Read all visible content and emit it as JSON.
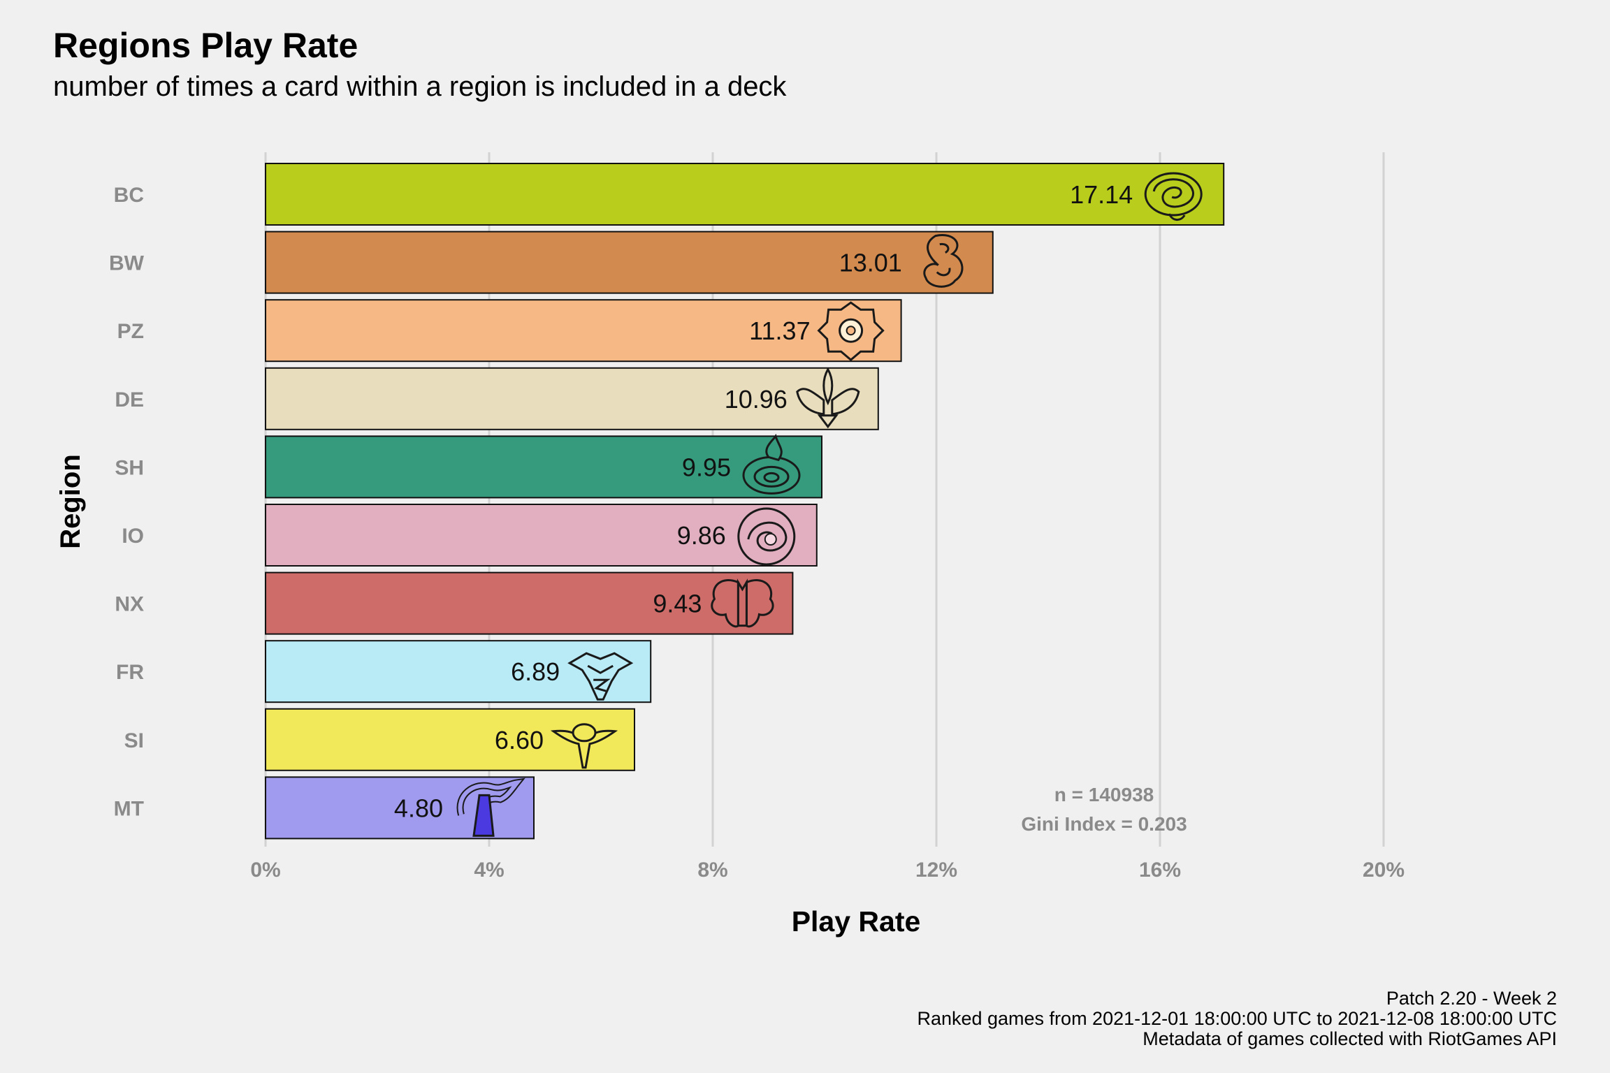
{
  "chart_data": {
    "type": "bar",
    "orientation": "horizontal",
    "title": "Regions Play Rate",
    "subtitle": "number of times a card within a region is included in a deck",
    "xlabel": "Play Rate",
    "ylabel": "Region",
    "xlim": [
      0,
      20
    ],
    "x_ticks": [
      "0%",
      "4%",
      "8%",
      "12%",
      "16%",
      "20%"
    ],
    "x_tick_values": [
      0,
      4,
      8,
      12,
      16,
      20
    ],
    "grid": "vertical-major",
    "categories": [
      "BC",
      "BW",
      "PZ",
      "DE",
      "SH",
      "IO",
      "NX",
      "FR",
      "SI",
      "MT"
    ],
    "values": [
      17.14,
      13.01,
      11.37,
      10.96,
      9.95,
      9.86,
      9.43,
      6.89,
      6.6,
      4.8
    ],
    "value_labels": [
      "17.14",
      "13.01",
      "11.37",
      "10.96",
      "9.95",
      "9.86",
      "9.43",
      "6.89",
      "6.60",
      "4.80"
    ],
    "colors": [
      "#b9cd1c",
      "#d38a4e",
      "#f6b985",
      "#e8ddbc",
      "#369b7c",
      "#e1afc0",
      "#cd6c69",
      "#b9ebf7",
      "#f1e85a",
      "#a09bee"
    ],
    "icons": [
      "bandle-city-icon",
      "bilgewater-icon",
      "piltover-zaun-icon",
      "demacia-icon",
      "shurima-icon",
      "ionia-icon",
      "noxus-icon",
      "freljord-icon",
      "shadow-isles-icon",
      "mount-targon-icon"
    ],
    "annotations": [
      "n = 140938",
      "Gini Index = 0.203"
    ],
    "caption": [
      "Patch 2.20 - Week 2",
      "Ranked games from 2021-12-01 18:00:00 UTC to 2021-12-08 18:00:00 UTC",
      "Metadata of games collected with RiotGames API"
    ]
  }
}
